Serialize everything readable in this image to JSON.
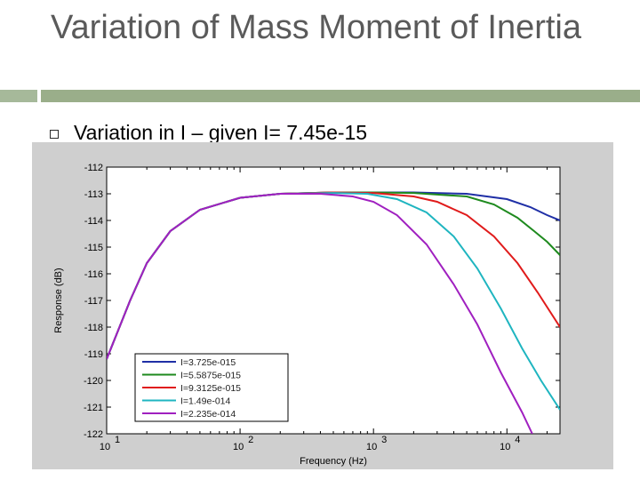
{
  "slide": {
    "title": "Variation of Mass Moment of Inertia",
    "bullet": "Variation in I – given I= 7.45e-15"
  },
  "colors": {
    "title": "#5a5a5a",
    "rule": "#9aae8a",
    "chart_bg": "#cfcfcf"
  },
  "chart_data": {
    "type": "line",
    "xlabel": "Frequency (Hz)",
    "ylabel": "Response (dB)",
    "xscale": "log",
    "xlim": [
      10,
      25000
    ],
    "ylim": [
      -122,
      -112
    ],
    "x_tick_labels": [
      {
        "base": "10",
        "exp": "1"
      },
      {
        "base": "10",
        "exp": "2"
      },
      {
        "base": "10",
        "exp": "3"
      },
      {
        "base": "10",
        "exp": "4"
      }
    ],
    "y_tick_labels": [
      "-112",
      "-113",
      "-114",
      "-115",
      "-116",
      "-117",
      "-118",
      "-119",
      "-120",
      "-121",
      "-122"
    ],
    "legend_position": "bottom-left",
    "series": [
      {
        "name": "I=3.725e-015",
        "color": "#1f2fa6",
        "points": [
          [
            10,
            -119.2
          ],
          [
            15,
            -117.0
          ],
          [
            20,
            -115.6
          ],
          [
            30,
            -114.4
          ],
          [
            50,
            -113.6
          ],
          [
            100,
            -113.15
          ],
          [
            200,
            -113.0
          ],
          [
            500,
            -112.95
          ],
          [
            1000,
            -112.95
          ],
          [
            2000,
            -112.95
          ],
          [
            5000,
            -113.0
          ],
          [
            10000,
            -113.2
          ],
          [
            15000,
            -113.5
          ],
          [
            20000,
            -113.8
          ],
          [
            25000,
            -114.0
          ]
        ]
      },
      {
        "name": "I=5.5875e-015",
        "color": "#1e8a1e",
        "points": [
          [
            10,
            -119.2
          ],
          [
            15,
            -117.0
          ],
          [
            20,
            -115.6
          ],
          [
            30,
            -114.4
          ],
          [
            50,
            -113.6
          ],
          [
            100,
            -113.15
          ],
          [
            200,
            -113.0
          ],
          [
            500,
            -112.95
          ],
          [
            1000,
            -112.95
          ],
          [
            2000,
            -112.97
          ],
          [
            5000,
            -113.1
          ],
          [
            8000,
            -113.4
          ],
          [
            12000,
            -113.9
          ],
          [
            16000,
            -114.4
          ],
          [
            20000,
            -114.8
          ],
          [
            25000,
            -115.3
          ]
        ]
      },
      {
        "name": "I=9.3125e-015",
        "color": "#e01b1b",
        "points": [
          [
            10,
            -119.2
          ],
          [
            15,
            -117.0
          ],
          [
            20,
            -115.6
          ],
          [
            30,
            -114.4
          ],
          [
            50,
            -113.6
          ],
          [
            100,
            -113.15
          ],
          [
            200,
            -113.0
          ],
          [
            500,
            -112.95
          ],
          [
            1000,
            -112.97
          ],
          [
            2000,
            -113.1
          ],
          [
            3000,
            -113.3
          ],
          [
            5000,
            -113.8
          ],
          [
            8000,
            -114.6
          ],
          [
            12000,
            -115.6
          ],
          [
            17000,
            -116.7
          ],
          [
            25000,
            -118.0
          ]
        ]
      },
      {
        "name": "I=1.49e-014",
        "color": "#1fb5c0",
        "points": [
          [
            10,
            -119.2
          ],
          [
            15,
            -117.0
          ],
          [
            20,
            -115.6
          ],
          [
            30,
            -114.4
          ],
          [
            50,
            -113.6
          ],
          [
            100,
            -113.15
          ],
          [
            200,
            -113.0
          ],
          [
            500,
            -112.97
          ],
          [
            900,
            -113.0
          ],
          [
            1500,
            -113.2
          ],
          [
            2500,
            -113.7
          ],
          [
            4000,
            -114.6
          ],
          [
            6000,
            -115.8
          ],
          [
            9000,
            -117.3
          ],
          [
            13000,
            -118.8
          ],
          [
            18000,
            -120.0
          ],
          [
            25000,
            -121.1
          ]
        ]
      },
      {
        "name": "I=2.235e-014",
        "color": "#a020c0",
        "points": [
          [
            10,
            -119.2
          ],
          [
            15,
            -117.0
          ],
          [
            20,
            -115.6
          ],
          [
            30,
            -114.4
          ],
          [
            50,
            -113.6
          ],
          [
            100,
            -113.15
          ],
          [
            200,
            -113.0
          ],
          [
            400,
            -113.0
          ],
          [
            700,
            -113.1
          ],
          [
            1000,
            -113.3
          ],
          [
            1500,
            -113.8
          ],
          [
            2500,
            -114.9
          ],
          [
            4000,
            -116.4
          ],
          [
            6000,
            -117.9
          ],
          [
            9000,
            -119.7
          ],
          [
            13000,
            -121.2
          ],
          [
            15500,
            -122.0
          ]
        ]
      }
    ]
  }
}
